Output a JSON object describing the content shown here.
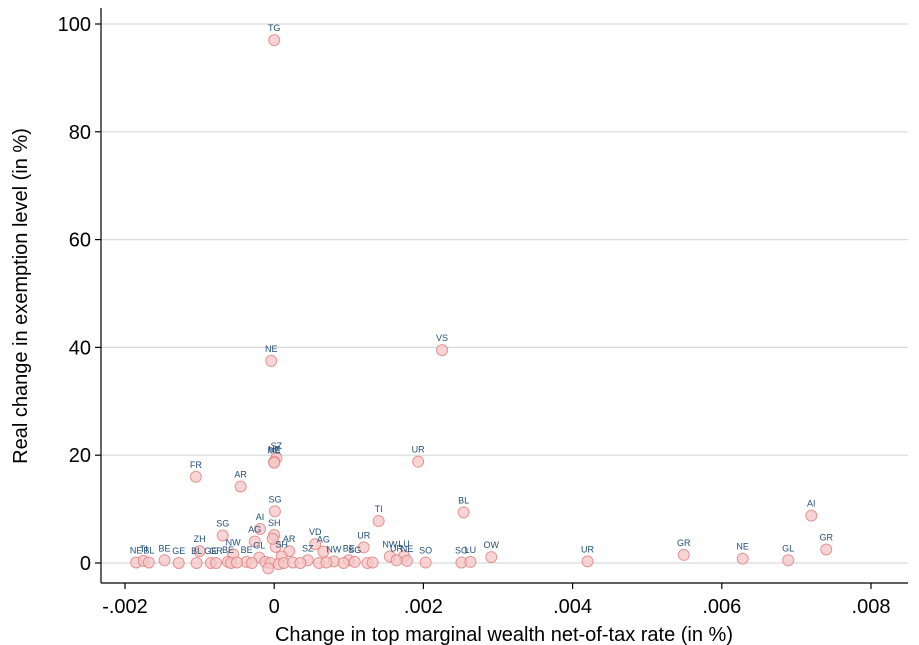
{
  "chart_data": {
    "type": "scatter",
    "xlabel": "Change in top marginal wealth net-of-tax rate (in %)",
    "ylabel": "Real change in exemption level (in %)",
    "xlim": [
      -0.0021,
      0.0082
    ],
    "ylim": [
      -2,
      102
    ],
    "xticks": [
      -0.002,
      0,
      0.002,
      0.004,
      0.006,
      0.008
    ],
    "xtick_labels": [
      "-.002",
      "0",
      ".002",
      ".004",
      ".006",
      ".008"
    ],
    "yticks": [
      0,
      20,
      40,
      60,
      80,
      100
    ],
    "ytick_labels": [
      "0",
      "20",
      "40",
      "60",
      "80",
      "100"
    ],
    "grid": true,
    "legend": "none",
    "colors": {
      "marker_fill": "#f5c6c6",
      "marker_stroke": "#e08080",
      "label": "#1f4e79",
      "grid": "#d9d9d9"
    },
    "points": [
      {
        "x": 0.0,
        "y": 97.0,
        "label": "TG"
      },
      {
        "x": 0.00225,
        "y": 39.5,
        "label": "VS"
      },
      {
        "x": -4e-05,
        "y": 37.5,
        "label": "NE"
      },
      {
        "x": 3e-05,
        "y": 19.5,
        "label": "SZ"
      },
      {
        "x": 0.0,
        "y": 18.8,
        "label": "NE"
      },
      {
        "x": 0.0,
        "y": 18.6,
        "label": "ME"
      },
      {
        "x": 0.00193,
        "y": 18.8,
        "label": "UR"
      },
      {
        "x": -0.00105,
        "y": 16.0,
        "label": "FR"
      },
      {
        "x": -0.00045,
        "y": 14.2,
        "label": "AR"
      },
      {
        "x": 0.00254,
        "y": 9.4,
        "label": "BL"
      },
      {
        "x": 1e-05,
        "y": 9.6,
        "label": "SG"
      },
      {
        "x": 0.0014,
        "y": 7.8,
        "label": "TI"
      },
      {
        "x": 0.0072,
        "y": 8.8,
        "label": "AI"
      },
      {
        "x": -0.00069,
        "y": 5.1,
        "label": "SG"
      },
      {
        "x": -0.00019,
        "y": 6.3,
        "label": "AI"
      },
      {
        "x": 0.0,
        "y": 5.2,
        "label": "SH"
      },
      {
        "x": 0.00055,
        "y": 3.5,
        "label": "VD"
      },
      {
        "x": -0.00026,
        "y": 4.0,
        "label": "AG"
      },
      {
        "x": 0.0012,
        "y": 2.9,
        "label": "UR"
      },
      {
        "x": 0.00066,
        "y": 2.1,
        "label": "AG"
      },
      {
        "x": -0.001,
        "y": 2.2,
        "label": "ZH"
      },
      {
        "x": -0.00055,
        "y": 1.6,
        "label": "NW"
      },
      {
        "x": 0.0074,
        "y": 2.5,
        "label": "GR"
      },
      {
        "x": 0.00549,
        "y": 1.5,
        "label": "GR"
      },
      {
        "x": 0.00291,
        "y": 1.1,
        "label": "OW"
      },
      {
        "x": 0.00628,
        "y": 0.8,
        "label": "NE"
      },
      {
        "x": 0.00174,
        "y": 1.3,
        "label": "LU"
      },
      {
        "x": 0.00155,
        "y": 1.2,
        "label": "NW"
      },
      {
        "x": 0.00164,
        "y": 0.5,
        "label": "UR"
      },
      {
        "x": 0.00178,
        "y": 0.4,
        "label": "NE"
      },
      {
        "x": 0.00203,
        "y": 0.1,
        "label": "SO"
      },
      {
        "x": 0.00251,
        "y": 0.1,
        "label": "SO"
      },
      {
        "x": 0.00263,
        "y": 0.2,
        "label": "LU"
      },
      {
        "x": 0.0042,
        "y": 0.3,
        "label": "UR"
      },
      {
        "x": 0.00689,
        "y": 0.5,
        "label": "GL"
      },
      {
        "x": -0.00185,
        "y": 0.1,
        "label": "NE"
      },
      {
        "x": -0.00175,
        "y": 0.4,
        "label": "TI"
      },
      {
        "x": -0.00168,
        "y": 0.1,
        "label": "BL"
      },
      {
        "x": -0.00147,
        "y": 0.5,
        "label": "BE"
      },
      {
        "x": -0.00128,
        "y": 0.0,
        "label": "GE"
      },
      {
        "x": -0.00104,
        "y": 0.0,
        "label": "BL"
      },
      {
        "x": -0.00085,
        "y": 0.0,
        "label": "GE"
      },
      {
        "x": -0.00078,
        "y": 0.0,
        "label": "GR"
      },
      {
        "x": -0.00062,
        "y": 0.2,
        "label": "BE"
      },
      {
        "x": -0.00037,
        "y": 0.2,
        "label": "BE"
      },
      {
        "x": -0.0002,
        "y": 1.0,
        "label": "GL"
      },
      {
        "x": 0.0002,
        "y": 2.2,
        "label": "AR"
      },
      {
        "x": 0.0001,
        "y": 1.2,
        "label": "SH"
      },
      {
        "x": 0.00045,
        "y": 0.5,
        "label": "SZ"
      },
      {
        "x": 0.0008,
        "y": 0.3,
        "label": "NW"
      },
      {
        "x": 0.001,
        "y": 0.5,
        "label": "BE"
      },
      {
        "x": 0.00108,
        "y": 0.2,
        "label": "SG"
      },
      {
        "x": -0.00058,
        "y": 0.0,
        "label": ""
      },
      {
        "x": -0.0005,
        "y": 0.1,
        "label": ""
      },
      {
        "x": -0.0003,
        "y": 0.0,
        "label": ""
      },
      {
        "x": -0.00012,
        "y": 0.2,
        "label": ""
      },
      {
        "x": -5e-05,
        "y": 0.0,
        "label": ""
      },
      {
        "x": 6e-05,
        "y": -0.2,
        "label": ""
      },
      {
        "x": 0.00013,
        "y": 0.0,
        "label": ""
      },
      {
        "x": 0.00025,
        "y": 0.1,
        "label": ""
      },
      {
        "x": 0.00035,
        "y": 0.0,
        "label": ""
      },
      {
        "x": 0.0006,
        "y": 0.0,
        "label": ""
      },
      {
        "x": 0.0007,
        "y": 0.1,
        "label": ""
      },
      {
        "x": 0.00093,
        "y": 0.0,
        "label": ""
      },
      {
        "x": 0.00125,
        "y": 0.0,
        "label": ""
      },
      {
        "x": 0.00132,
        "y": 0.1,
        "label": ""
      },
      {
        "x": -8e-05,
        "y": -1.0,
        "label": ""
      },
      {
        "x": 2e-05,
        "y": 3.0,
        "label": ""
      },
      {
        "x": -2e-05,
        "y": 4.5,
        "label": ""
      }
    ]
  }
}
